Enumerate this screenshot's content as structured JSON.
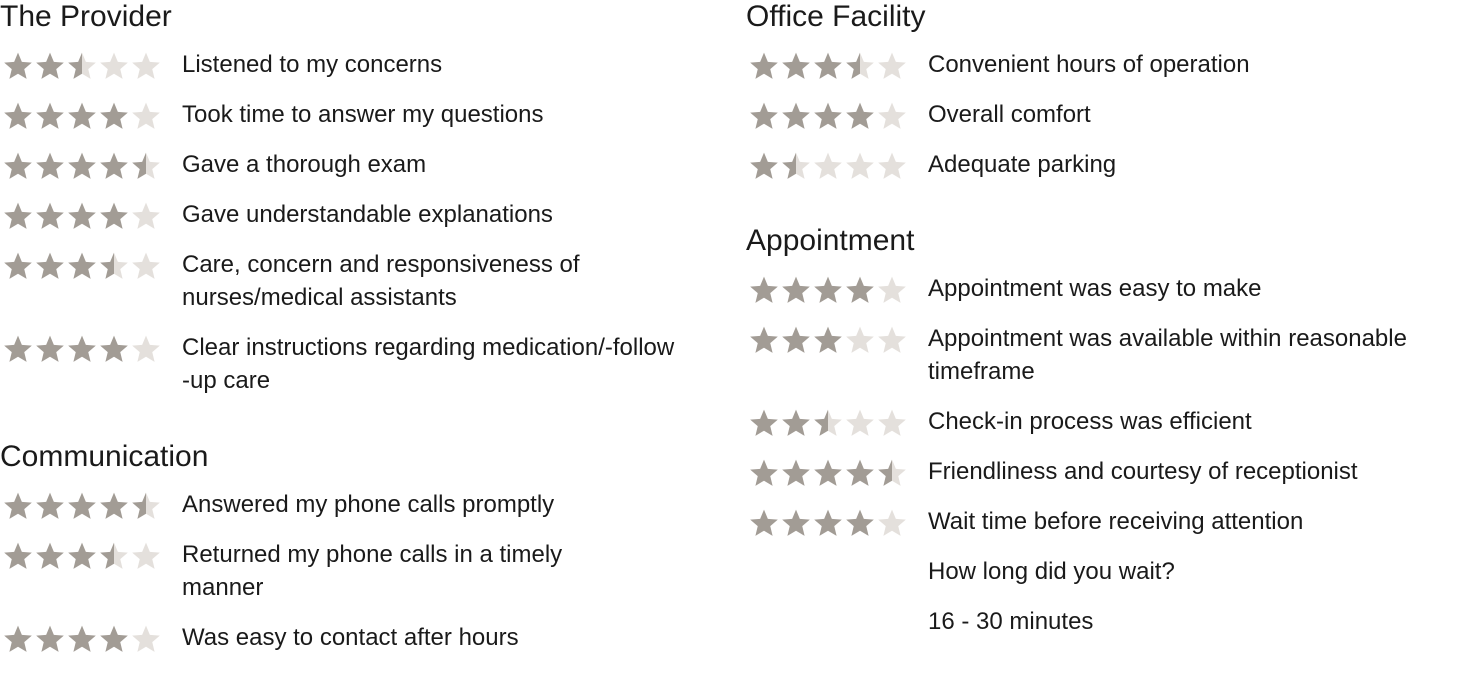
{
  "colors": {
    "star_filled": "#a29c95",
    "star_empty": "#e4e0dc",
    "text": "#1a1a1a"
  },
  "left": [
    {
      "title": "The Provider",
      "items": [
        {
          "label": "Listened to my concerns",
          "rating": 2.5
        },
        {
          "label": "Took time to answer my questions",
          "rating": 4
        },
        {
          "label": "Gave a thorough exam",
          "rating": 4.5
        },
        {
          "label": "Gave understandable explanations",
          "rating": 4
        },
        {
          "label": "Care, concern and responsiveness of nurses/medical assistants",
          "rating": 3.5
        },
        {
          "label": "Clear instructions regarding medication/-follow-up care",
          "rating": 4
        }
      ]
    },
    {
      "title": "Communication",
      "items": [
        {
          "label": "Answered my phone calls promptly",
          "rating": 4.5
        },
        {
          "label": "Returned my phone calls in a timely manner",
          "rating": 3.5
        },
        {
          "label": "Was easy to contact after hours",
          "rating": 4
        }
      ]
    }
  ],
  "right": [
    {
      "title": "Office Facility",
      "items": [
        {
          "label": "Convenient hours of operation",
          "rating": 3.5
        },
        {
          "label": "Overall comfort",
          "rating": 4
        },
        {
          "label": "Adequate parking",
          "rating": 1.5
        }
      ]
    },
    {
      "title": "Appointment",
      "items": [
        {
          "label": "Appointment was easy to make",
          "rating": 4
        },
        {
          "label": "Appointment was available within reasonable timeframe",
          "rating": 3
        },
        {
          "label": "Check-in process was efficient",
          "rating": 2.5
        },
        {
          "label": "Friendliness and courtesy of receptionist",
          "rating": 4.5
        },
        {
          "label": "Wait time before receiving attention",
          "rating": 4
        },
        {
          "label": "How long did you wait?"
        },
        {
          "label": "16 - 30 minutes"
        }
      ]
    }
  ]
}
